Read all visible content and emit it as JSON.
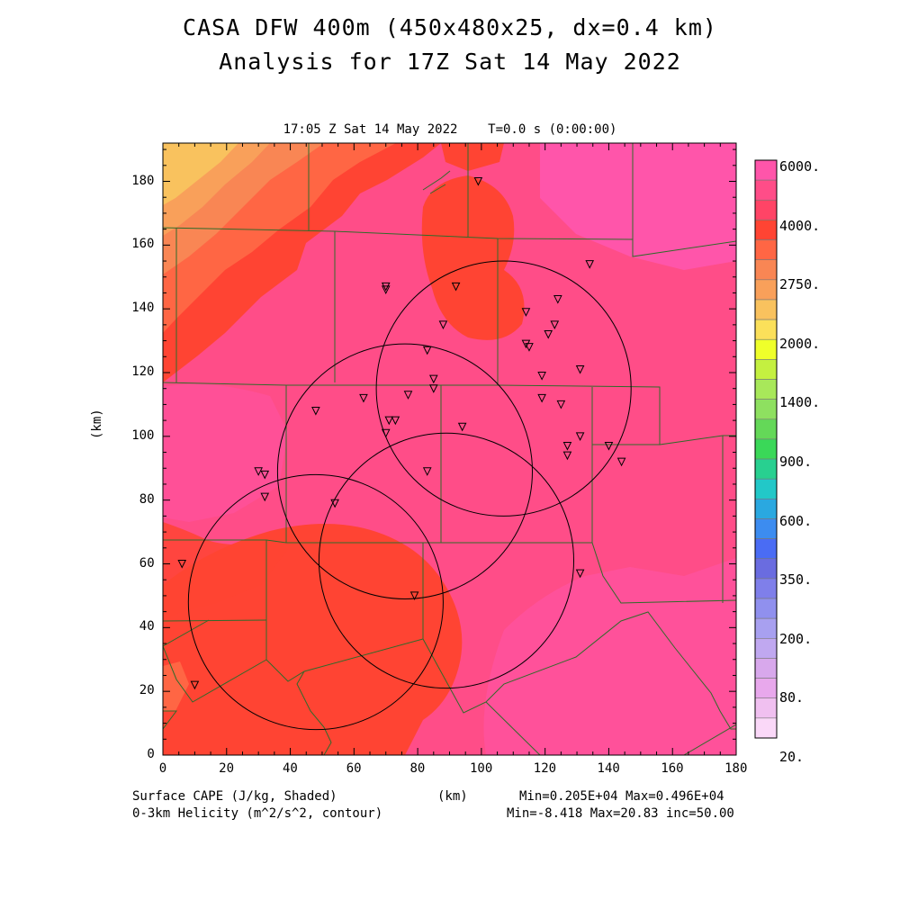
{
  "header": {
    "title_line1": "CASA DFW 400m (450x480x25, dx=0.4 km)",
    "title_line2": "Analysis for 17Z Sat 14 May 2022",
    "subtitle": "17:05 Z Sat 14 May 2022    T=0.0 s (0:00:00)"
  },
  "axes": {
    "x_ticks": [
      "0",
      "20",
      "40",
      "60",
      "80",
      "100",
      "120",
      "140",
      "160",
      "180"
    ],
    "y_ticks": [
      "0",
      "20",
      "40",
      "60",
      "80",
      "100",
      "120",
      "140",
      "160",
      "180"
    ],
    "y_label": "(km)",
    "x_label": "(km)"
  },
  "colorbar": {
    "labels": [
      "6000.",
      "4000.",
      "2750.",
      "2000.",
      "1400.",
      "900.",
      "600.",
      "350.",
      "200.",
      "80.",
      "20."
    ],
    "colors": [
      "#ff55aa",
      "#ff4d88",
      "#ff4466",
      "#ff4433",
      "#ff6644",
      "#f98654",
      "#f9a05a",
      "#f9c25e",
      "#fbe05a",
      "#efff2a",
      "#c4f040",
      "#a8e85a",
      "#8ee060",
      "#64d858",
      "#3ad858",
      "#28d090",
      "#22c8c8",
      "#2aa8e0",
      "#3c8cf0",
      "#4a6cf4",
      "#6a6ce0",
      "#7f7fea",
      "#9090ee",
      "#a8a0f0",
      "#c0a8f0",
      "#d8a8ec",
      "#e8a8ec",
      "#f0c0f0",
      "#fad8f8"
    ]
  },
  "map": {
    "colors": {
      "darkest": "#ff55aa",
      "pink": "#ff4d88",
      "red": "#ff4433",
      "orange_red": "#ff6644",
      "orange": "#f98654",
      "light_orange": "#f9a05a",
      "gold": "#f9c25e"
    },
    "stations": [
      [
        99,
        180
      ],
      [
        70,
        147
      ],
      [
        70,
        146
      ],
      [
        92,
        147
      ],
      [
        134,
        154
      ],
      [
        114,
        139
      ],
      [
        124,
        143
      ],
      [
        123,
        135
      ],
      [
        121,
        132
      ],
      [
        114,
        129
      ],
      [
        115,
        128
      ],
      [
        88,
        135
      ],
      [
        83,
        127
      ],
      [
        119,
        119
      ],
      [
        131,
        121
      ],
      [
        85,
        118
      ],
      [
        85,
        115
      ],
      [
        77,
        113
      ],
      [
        63,
        112
      ],
      [
        48,
        108
      ],
      [
        71,
        105
      ],
      [
        73,
        105
      ],
      [
        70,
        101
      ],
      [
        94,
        103
      ],
      [
        119,
        112
      ],
      [
        125,
        110
      ],
      [
        131,
        100
      ],
      [
        127,
        97
      ],
      [
        127,
        94
      ],
      [
        140,
        97
      ],
      [
        144,
        92
      ],
      [
        83,
        89
      ],
      [
        30,
        89
      ],
      [
        32,
        88
      ],
      [
        32,
        81
      ],
      [
        54,
        79
      ],
      [
        6,
        60
      ],
      [
        131,
        57
      ],
      [
        79,
        50
      ],
      [
        10,
        22
      ]
    ],
    "circles": [
      [
        107,
        115
      ],
      [
        76,
        89
      ],
      [
        89,
        61
      ],
      [
        48,
        48
      ]
    ],
    "circle_radius_km": 40
  },
  "footer": {
    "left1": "Surface CAPE (J/kg, Shaded)",
    "left2": "0-3km Helicity (m^2/s^2, contour)",
    "center": "(km)",
    "right1": "Min=0.205E+04 Max=0.496E+04",
    "right2": "Min=-8.418 Max=20.83 inc=50.00"
  }
}
